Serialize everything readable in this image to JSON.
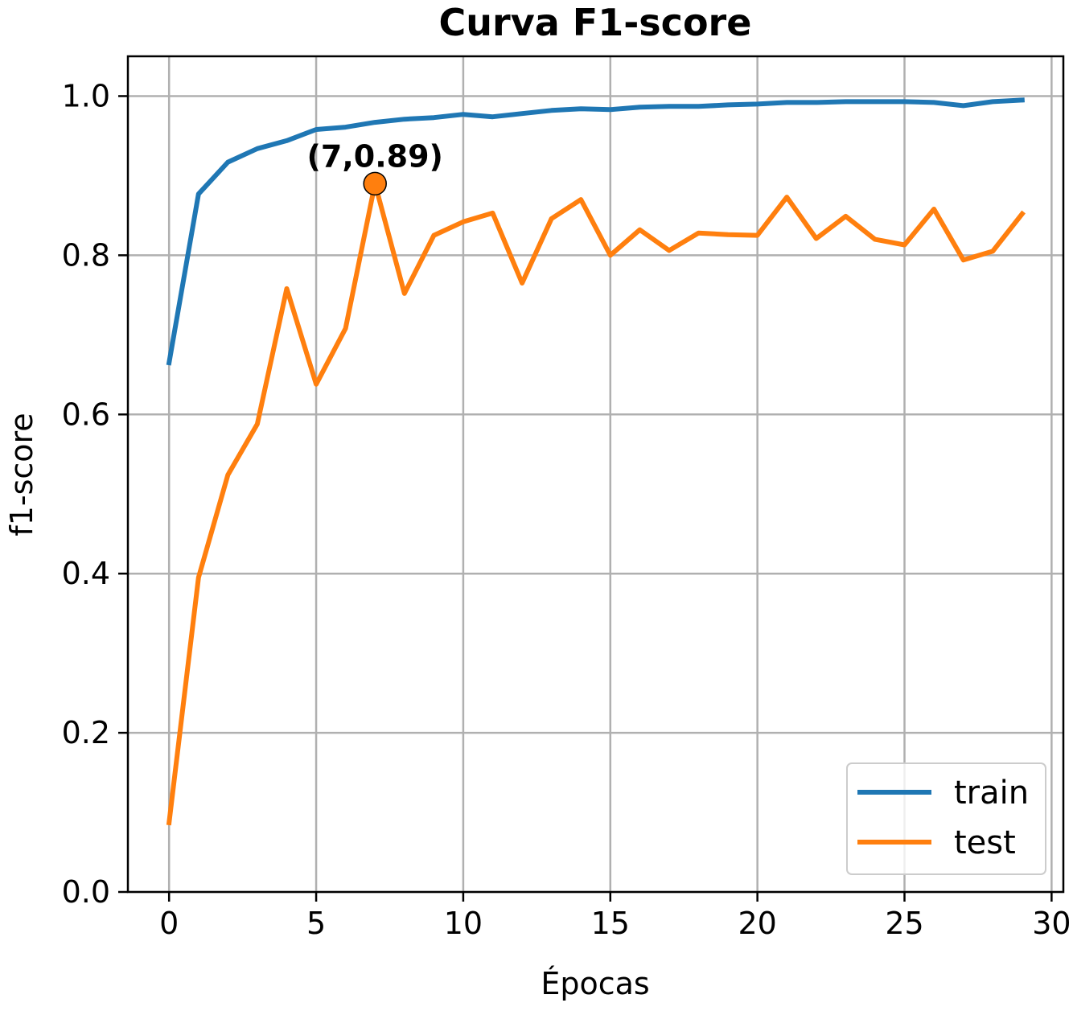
{
  "chart_data": {
    "type": "line",
    "title": "Curva F1-score",
    "xlabel": "Épocas",
    "ylabel": "f1-score",
    "xlim": [
      -1.4,
      30.4
    ],
    "ylim": [
      0.0,
      1.05
    ],
    "xticks": [
      0,
      5,
      10,
      15,
      20,
      25,
      30
    ],
    "xtick_labels": [
      "0",
      "5",
      "10",
      "15",
      "20",
      "25",
      "30"
    ],
    "yticks": [
      0.0,
      0.2,
      0.4,
      0.6,
      0.8,
      1.0
    ],
    "ytick_labels": [
      "0.0",
      "0.2",
      "0.4",
      "0.6",
      "0.8",
      "1.0"
    ],
    "grid": true,
    "legend_position": "bottom-right",
    "x": [
      0,
      1,
      2,
      3,
      4,
      5,
      6,
      7,
      8,
      9,
      10,
      11,
      12,
      13,
      14,
      15,
      16,
      17,
      18,
      19,
      20,
      21,
      22,
      23,
      24,
      25,
      26,
      27,
      28,
      29
    ],
    "series": [
      {
        "name": "train",
        "color": "#1f77b4",
        "values": [
          0.665,
          0.877,
          0.917,
          0.934,
          0.944,
          0.958,
          0.961,
          0.967,
          0.971,
          0.973,
          0.977,
          0.974,
          0.978,
          0.982,
          0.984,
          0.983,
          0.986,
          0.987,
          0.987,
          0.989,
          0.99,
          0.992,
          0.992,
          0.993,
          0.993,
          0.993,
          0.992,
          0.988,
          0.993,
          0.995
        ]
      },
      {
        "name": "test",
        "color": "#ff7f0e",
        "values": [
          0.087,
          0.395,
          0.524,
          0.588,
          0.758,
          0.638,
          0.708,
          0.89,
          0.752,
          0.825,
          0.842,
          0.853,
          0.765,
          0.846,
          0.87,
          0.8,
          0.832,
          0.806,
          0.828,
          0.826,
          0.825,
          0.873,
          0.821,
          0.849,
          0.82,
          0.813,
          0.858,
          0.794,
          0.805,
          0.852
        ]
      }
    ],
    "annotation": {
      "label": "(7,0.89)",
      "x": 7,
      "y": 0.89,
      "marker_color": "#ff7f0e"
    }
  }
}
